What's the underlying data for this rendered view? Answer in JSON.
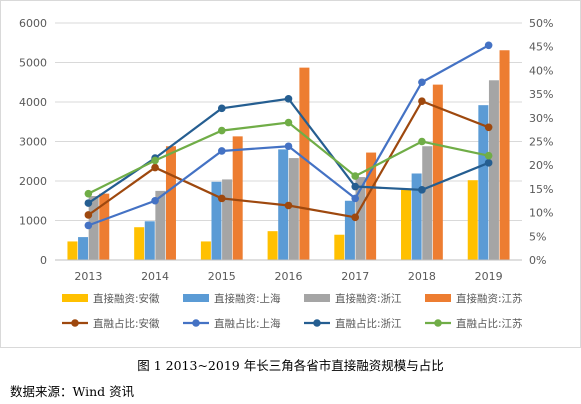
{
  "chart_data": {
    "type": "bar+line",
    "categories": [
      "2013",
      "2014",
      "2015",
      "2016",
      "2017",
      "2018",
      "2019"
    ],
    "bar_series": [
      {
        "name": "直接融资:安徽",
        "color": "#ffc000",
        "values": [
          470,
          830,
          470,
          730,
          640,
          1780,
          2020
        ]
      },
      {
        "name": "直接融资:上海",
        "color": "#5b9bd5",
        "values": [
          580,
          980,
          1980,
          2800,
          1500,
          2190,
          3920
        ]
      },
      {
        "name": "直接融资:浙江",
        "color": "#a5a5a5",
        "values": [
          1620,
          1750,
          2040,
          2580,
          2100,
          2880,
          4550
        ]
      },
      {
        "name": "直接融资:江苏",
        "color": "#ed7d31",
        "values": [
          1680,
          2880,
          3130,
          4870,
          2720,
          4440,
          5310
        ]
      }
    ],
    "line_series": [
      {
        "name": "直融占比:安徽",
        "color": "#9e480e",
        "values": [
          9.5,
          19.5,
          13.0,
          11.5,
          9.0,
          33.5,
          28.0
        ]
      },
      {
        "name": "直融占比:上海",
        "color": "#4472c4",
        "values": [
          7.3,
          12.5,
          23.0,
          24.0,
          13.0,
          37.5,
          45.3
        ]
      },
      {
        "name": "直融占比:浙江",
        "color": "#255e91",
        "values": [
          12.0,
          21.5,
          32.0,
          34.0,
          15.5,
          14.8,
          20.5
        ]
      },
      {
        "name": "直融占比:江苏",
        "color": "#70ad47",
        "values": [
          14.0,
          21.0,
          27.3,
          29.0,
          17.7,
          25.0,
          22.0
        ]
      }
    ],
    "y_left": {
      "min": 0,
      "max": 6000,
      "step": 1000,
      "ticks": [
        "0",
        "1000",
        "2000",
        "3000",
        "4000",
        "5000",
        "6000"
      ]
    },
    "y_right": {
      "min": 0,
      "max": 50,
      "step": 5,
      "ticks": [
        "0%",
        "5%",
        "10%",
        "15%",
        "20%",
        "25%",
        "30%",
        "35%",
        "40%",
        "45%",
        "50%"
      ]
    },
    "grid": true,
    "legend_position": "bottom"
  },
  "caption": "图 1 2013~2019 年长三角各省市直接融资规模与占比",
  "source": "数据来源：Wind 资讯"
}
